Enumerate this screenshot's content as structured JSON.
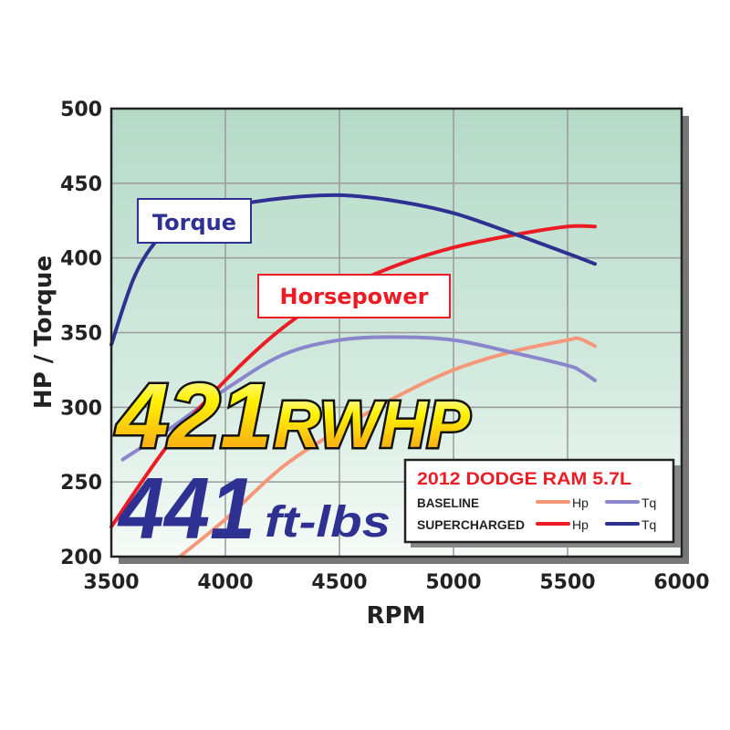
{
  "chart_data": {
    "type": "line",
    "xlabel": "RPM",
    "ylabel": "HP / Torque",
    "xlim": [
      3500,
      6000
    ],
    "ylim": [
      200,
      500
    ],
    "xticks": [
      "3500",
      "4000",
      "4500",
      "5000",
      "5500",
      "6000"
    ],
    "yticks": [
      "200",
      "250",
      "300",
      "350",
      "400",
      "450",
      "500"
    ],
    "grid": true,
    "legend": {
      "title": "2012 DODGE RAM 5.7L",
      "placement": "bottom-right",
      "rows": [
        {
          "label": "BASELINE",
          "hp": "Hp",
          "tq": "Tq"
        },
        {
          "label": "SUPERCHARGED",
          "hp": "Hp",
          "tq": "Tq"
        }
      ]
    },
    "annotations": {
      "torque_label": "Torque",
      "horsepower_label": "Horsepower",
      "peak_hp_number": "421",
      "peak_hp_unit": "RWHP",
      "peak_tq_number": "441",
      "peak_tq_unit": "ft-lbs"
    },
    "series": [
      {
        "group": "SUPERCHARGED",
        "metric": "Tq",
        "color": "#2e3192",
        "x": [
          3500,
          3600,
          3700,
          3800,
          4000,
          4250,
          4500,
          4750,
          5000,
          5250,
          5500,
          5620
        ],
        "y": [
          342,
          387,
          412,
          425,
          434,
          440,
          442,
          438,
          430,
          417,
          403,
          396
        ]
      },
      {
        "group": "SUPERCHARGED",
        "metric": "Hp",
        "color": "#ed1c24",
        "x": [
          3500,
          3750,
          4000,
          4250,
          4500,
          4750,
          5000,
          5250,
          5500,
          5620
        ],
        "y": [
          220,
          275,
          318,
          353,
          378,
          395,
          407,
          415,
          421,
          421
        ]
      },
      {
        "group": "BASELINE",
        "metric": "Tq",
        "color": "#8b86cc",
        "x": [
          3550,
          3750,
          4000,
          4250,
          4500,
          4750,
          5000,
          5250,
          5500,
          5560,
          5620
        ],
        "y": [
          265,
          285,
          312,
          335,
          345,
          347,
          345,
          337,
          328,
          324,
          318
        ]
      },
      {
        "group": "BASELINE",
        "metric": "Hp",
        "color": "#f7977a",
        "x": [
          3800,
          4000,
          4250,
          4500,
          4750,
          5000,
          5250,
          5500,
          5550,
          5620
        ],
        "y": [
          200,
          225,
          260,
          285,
          307,
          325,
          337,
          345,
          346,
          341
        ]
      }
    ]
  }
}
